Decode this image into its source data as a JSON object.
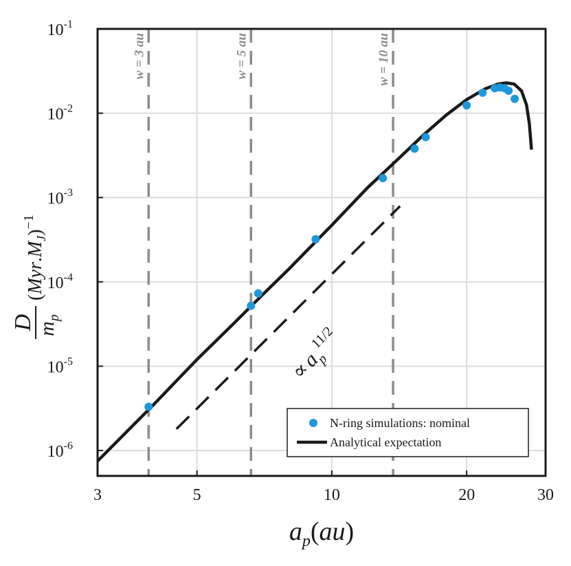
{
  "chart_data": {
    "type": "scatter",
    "x_scale": "log",
    "y_scale": "log",
    "xlim": [
      3,
      30
    ],
    "ylim": [
      5e-07,
      0.1
    ],
    "grid": true,
    "legend_position": "bottom-right",
    "xlabel": "a_p(au)",
    "ylabel": "D/m_p (Myr.M_J)^-1",
    "x_ticks": [
      {
        "value": 3,
        "label": "3"
      },
      {
        "value": 5,
        "label": "5"
      },
      {
        "value": 10,
        "label": "10"
      },
      {
        "value": 20,
        "label": "20"
      },
      {
        "value": 30,
        "label": "30"
      }
    ],
    "y_ticks": [
      {
        "value": 1e-06,
        "base": "10",
        "exp": "-6"
      },
      {
        "value": 1e-05,
        "base": "10",
        "exp": "-5"
      },
      {
        "value": 0.0001,
        "base": "10",
        "exp": "-4"
      },
      {
        "value": 0.001,
        "base": "10",
        "exp": "-3"
      },
      {
        "value": 0.01,
        "base": "10",
        "exp": "-2"
      },
      {
        "value": 0.1,
        "base": "10",
        "exp": "-1"
      }
    ],
    "series": [
      {
        "name": "N-ring simulations: nominal",
        "kind": "scatter",
        "color": "#1f97dc",
        "x": [
          3.9,
          6.6,
          6.85,
          9.2,
          13.0,
          15.3,
          16.2,
          20.0,
          21.7,
          23.1,
          23.7,
          24.3,
          24.8,
          25.6
        ],
        "y": [
          3.3e-06,
          5.2e-05,
          7.3e-05,
          0.00032,
          0.0017,
          0.0038,
          0.0052,
          0.0124,
          0.0175,
          0.0198,
          0.0202,
          0.0198,
          0.0185,
          0.0148
        ]
      },
      {
        "name": "Analytical expectation",
        "kind": "line",
        "color": "#1a1a1a",
        "x": [
          3.0,
          4.0,
          5.0,
          6.0,
          7.0,
          8.0,
          10.0,
          12.0,
          14.0,
          16.0,
          18.0,
          20.0,
          22.0,
          23.5,
          24.5,
          25.5,
          26.5,
          27.2,
          27.6,
          27.9
        ],
        "y": [
          7.5e-07,
          3.5e-06,
          1.2e-05,
          3.1e-05,
          7e-05,
          0.00014,
          0.00047,
          0.0013,
          0.0028,
          0.0055,
          0.0095,
          0.0145,
          0.0195,
          0.0222,
          0.0229,
          0.0222,
          0.0185,
          0.0125,
          0.0075,
          0.0037
        ]
      },
      {
        "name": "",
        "kind": "reference-line",
        "style": "dashed",
        "color": "#1a1a1a",
        "x": [
          4.5,
          14.2
        ],
        "y": [
          1.8e-06,
          0.00079
        ]
      }
    ],
    "vertical_lines": [
      {
        "x": 3.9,
        "label": "w = 3 au"
      },
      {
        "x": 6.6,
        "label": "w = 5 au"
      },
      {
        "x": 13.7,
        "label": "w = 10 au"
      }
    ],
    "annotations": [
      {
        "text_prefix": "∝",
        "text_base": "a",
        "text_sub": "p",
        "text_sup": "11/2",
        "x": 10.0,
        "y": 1.2e-05
      }
    ],
    "legend": [
      {
        "label": "N-ring simulations: nominal",
        "marker": "circle",
        "color": "#1f97dc"
      },
      {
        "label": "Analytical expectation",
        "marker": "line",
        "color": "#1a1a1a"
      }
    ],
    "colors": {
      "axis": "#1a1a1a",
      "grid": "#dcdcdc",
      "vline": "#8c8c8c",
      "points": "#1f97dc",
      "curve": "#1a1a1a"
    }
  }
}
